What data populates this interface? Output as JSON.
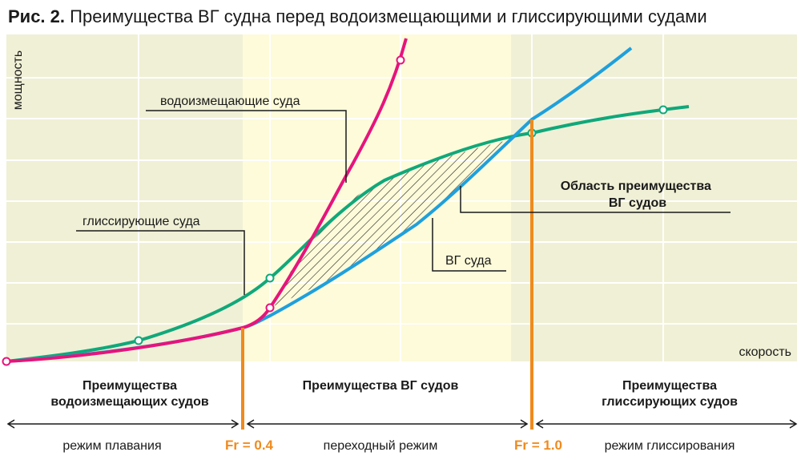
{
  "title": {
    "prefix": "Рис. 2.",
    "text": "Преимущества ВГ судна перед водоизмещающими и глиссирующими судами"
  },
  "chart_data": {
    "type": "line",
    "xlabel": "скорость",
    "ylabel": "мощность",
    "x_ticks_fr": [
      0.4,
      1.0
    ],
    "series": [
      {
        "name": "водоизмещающие суда",
        "color": "#e6147c",
        "x": [
          0.0,
          0.3,
          0.4,
          0.5,
          0.6,
          0.7
        ],
        "y": [
          0.0,
          0.8,
          1.3,
          3.0,
          6.0,
          9.3
        ]
      },
      {
        "name": "глиссирующие суда",
        "color": "#10a87a",
        "x": [
          0.0,
          0.2,
          0.5,
          0.8,
          1.0,
          1.3
        ],
        "y": [
          0.0,
          0.6,
          2.8,
          4.9,
          5.8,
          6.3
        ]
      },
      {
        "name": "ВГ суда",
        "color": "#1fa0dc",
        "x": [
          0.0,
          0.4,
          0.6,
          0.8,
          1.0,
          1.2
        ],
        "y": [
          0.0,
          1.0,
          1.4,
          3.0,
          6.0,
          7.7
        ]
      }
    ],
    "annotations": {
      "advantage_area": "Область преимущества ВГ судов",
      "fr_low": "Fr = 0.4",
      "fr_high": "Fr = 1.0"
    }
  },
  "zones": {
    "left_title": [
      "Преимущества",
      "водоизмещающих судов"
    ],
    "middle_title": "Преимущества ВГ судов",
    "right_title": [
      "Преимущества",
      "глиссирующих судов"
    ]
  },
  "modes": {
    "left": "режим плавания",
    "middle": "переходный режим",
    "right": "режим глиссирования"
  },
  "colors": {
    "plot_bg": "#f0f0d6",
    "highlight_bg": "#fdfbd9",
    "grid": "#ffffff",
    "orange": "#f08a1c"
  }
}
